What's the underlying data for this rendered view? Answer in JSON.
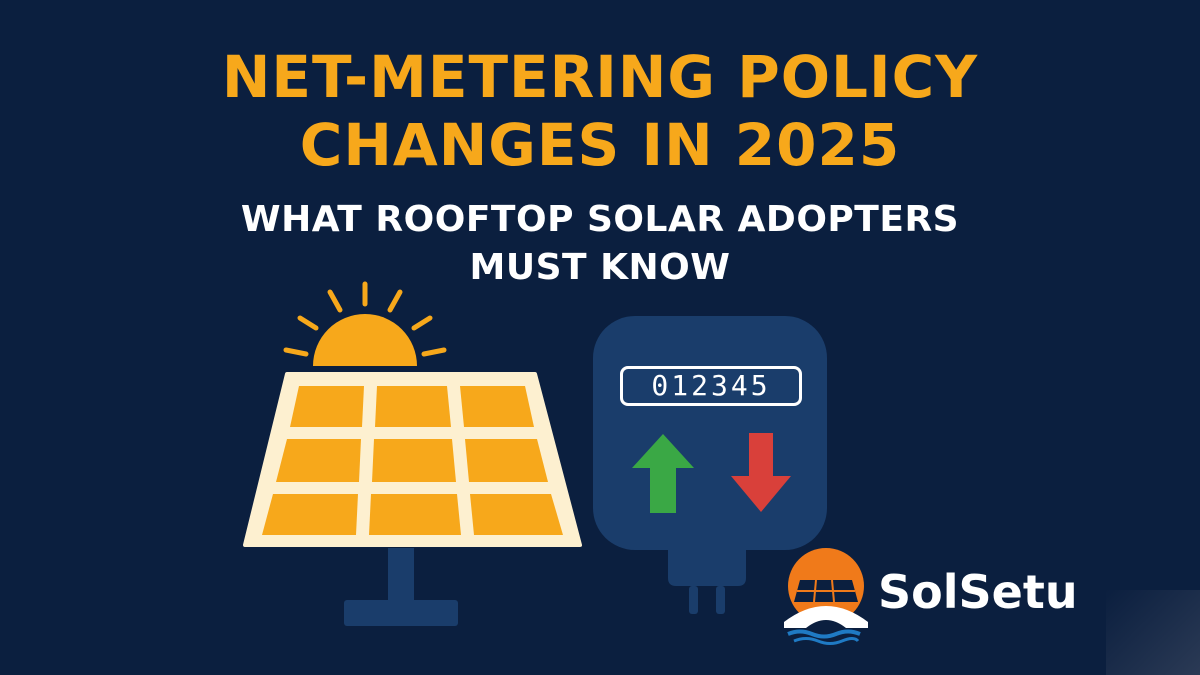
{
  "title": {
    "line1": "NET-METERING POLICY",
    "line2": "CHANGES IN 2025"
  },
  "subtitle": {
    "line1": "WHAT ROOFTOP SOLAR ADOPTERS",
    "line2": "MUST KNOW"
  },
  "meter": {
    "reading": "012345"
  },
  "brand": {
    "name": "SolSetu"
  },
  "colors": {
    "background": "#0b1f3f",
    "accent_orange": "#f7a81b",
    "meter_blue": "#1a3d6b",
    "arrow_up": "#3aa845",
    "arrow_down": "#d9403a"
  },
  "icons": [
    "sun-icon",
    "solar-panel-icon",
    "electric-meter-icon",
    "arrow-up-icon",
    "arrow-down-icon",
    "solsetu-logo"
  ]
}
